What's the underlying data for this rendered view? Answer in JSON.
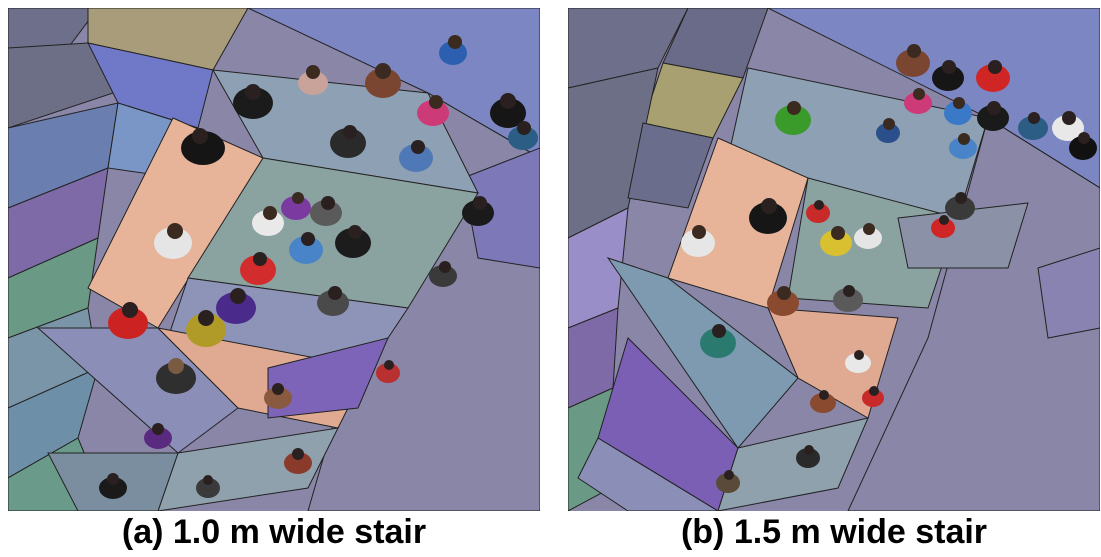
{
  "figure": {
    "panels": [
      {
        "id": "a",
        "caption": "(a) 1.0 m wide stair"
      },
      {
        "id": "b",
        "caption": "(b) 1.5 m wide stair"
      }
    ],
    "colors": {
      "background_plate": "#8a86a8",
      "floor_tiles": [
        "#6e6f8a",
        "#7b86c2",
        "#8e93c9",
        "#6d8fa8",
        "#8aa3a0",
        "#7d6aa6",
        "#a89cc3",
        "#6a9a86",
        "#8a8aa0",
        "#a8a070"
      ],
      "landing_salmon": "#e7b49a",
      "steps_slate": "#8ea0b3",
      "steps_dark": "#7a8ea0"
    }
  }
}
